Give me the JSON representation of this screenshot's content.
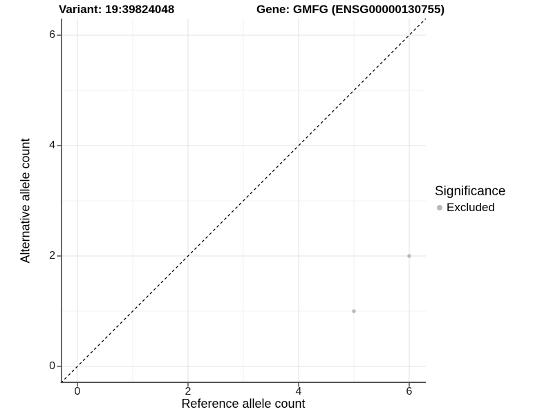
{
  "chart_data": {
    "type": "scatter",
    "title_left": "Variant: 19:39824048",
    "title_right": "Gene: GMFG (ENSG00000130755)",
    "xlabel": "Reference allele count",
    "ylabel": "Alternative allele count",
    "xlim": [
      -0.3,
      6.3
    ],
    "ylim": [
      -0.3,
      6.3
    ],
    "x_ticks": [
      0,
      2,
      4,
      6
    ],
    "y_ticks": [
      0,
      2,
      4,
      6
    ],
    "grid": {
      "major": [
        0,
        2,
        4,
        6
      ],
      "minor": [
        1,
        3,
        5
      ]
    },
    "identity_line": {
      "slope": 1,
      "intercept": 0,
      "style": "dashed",
      "color": "#000000"
    },
    "series": [
      {
        "name": "Excluded",
        "color": "#b9b9b9",
        "points": [
          {
            "x": 5,
            "y": 1
          },
          {
            "x": 6,
            "y": 2
          }
        ]
      }
    ],
    "legend": {
      "title": "Significance",
      "position": "right",
      "entries": [
        {
          "label": "Excluded",
          "color": "#b9b9b9"
        }
      ]
    },
    "colors": {
      "background": "#ffffff",
      "grid_major": "#e3e3e3",
      "grid_minor": "#f1f1f1",
      "axis_line": "#464646",
      "tick_mark": "#333333",
      "tick_text": "#1a1a1a",
      "point": "#b9b9b9"
    }
  }
}
